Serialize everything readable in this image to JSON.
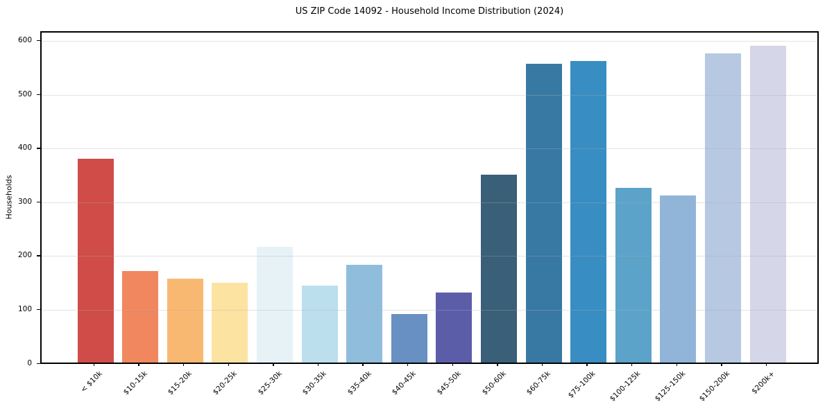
{
  "header": {
    "title": "US ZIP Code 14092 - Household Income Distribution (2024)"
  },
  "chart_data": {
    "type": "bar",
    "title": "US ZIP Code 14092 - Household Income Distribution (2024)",
    "xlabel": "",
    "ylabel": "Households",
    "ylim": [
      0,
      618
    ],
    "yticks": [
      0,
      100,
      200,
      300,
      400,
      500,
      600
    ],
    "grid": "horizontal",
    "legend_position": "none",
    "categories": [
      "< $10k",
      "$10-15k",
      "$15-20k",
      "$20-25k",
      "$25-30k",
      "$30-35k",
      "$35-40k",
      "$40-45k",
      "$45-50k",
      "$50-60k",
      "$60-75k",
      "$75-100k",
      "$100-125k",
      "$125-150k",
      "$150-200k",
      "$200k+"
    ],
    "values": [
      378,
      169,
      155,
      148,
      215,
      142,
      181,
      89,
      130,
      349,
      555,
      560,
      324,
      310,
      574,
      588
    ],
    "bar_colors": [
      "#cf4c49",
      "#f0875f",
      "#f9b872",
      "#fce3a2",
      "#e7f2f7",
      "#bcdfee",
      "#90bddc",
      "#6890c2",
      "#5c5da9",
      "#3a5f78",
      "#3879a3",
      "#388dc2",
      "#5ba3c9",
      "#90b5d9",
      "#b7c8e2",
      "#d5d6e7"
    ]
  },
  "colors": {
    "background": "#ffffff",
    "spine": "#000000",
    "grid": "rgba(176,176,176,0.35)",
    "text": "#000000"
  }
}
